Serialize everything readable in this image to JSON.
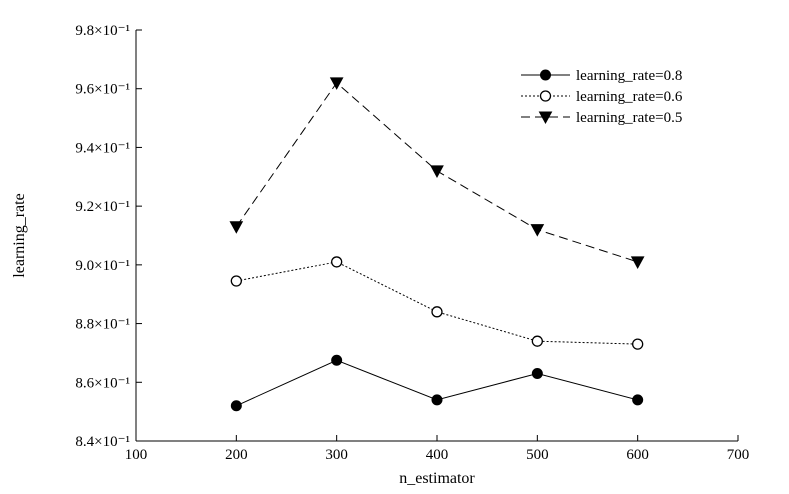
{
  "chart_data": {
    "type": "line",
    "title": "",
    "xlabel": "n_estimator",
    "ylabel": "learning_rate",
    "xlim": [
      100,
      700
    ],
    "ylim": [
      0.84,
      0.98
    ],
    "x_ticks": [
      "100",
      "200",
      "300",
      "400",
      "500",
      "600",
      "700"
    ],
    "y_ticks": [
      "8.4×10⁻¹",
      "8.6×10⁻¹",
      "8.8×10⁻¹",
      "9.0×10⁻¹",
      "9.2×10⁻¹",
      "9.4×10⁻¹",
      "9.6×10⁻¹",
      "9.8×10⁻¹"
    ],
    "grid": false,
    "legend_position": "top-right",
    "x": [
      200,
      300,
      400,
      500,
      600
    ],
    "series": [
      {
        "name": "learning_rate=0.8",
        "values": [
          0.852,
          0.8675,
          0.854,
          0.863,
          0.854
        ],
        "line_style": "solid",
        "marker": "filled-circle",
        "color": "#000000"
      },
      {
        "name": "learning_rate=0.6",
        "values": [
          0.8945,
          0.901,
          0.884,
          0.874,
          0.873
        ],
        "line_style": "dotted",
        "marker": "open-circle",
        "color": "#000000"
      },
      {
        "name": "learning_rate=0.5",
        "values": [
          0.913,
          0.962,
          0.932,
          0.912,
          0.901
        ],
        "line_style": "dashed",
        "marker": "filled-triangle-down",
        "color": "#000000"
      }
    ]
  }
}
